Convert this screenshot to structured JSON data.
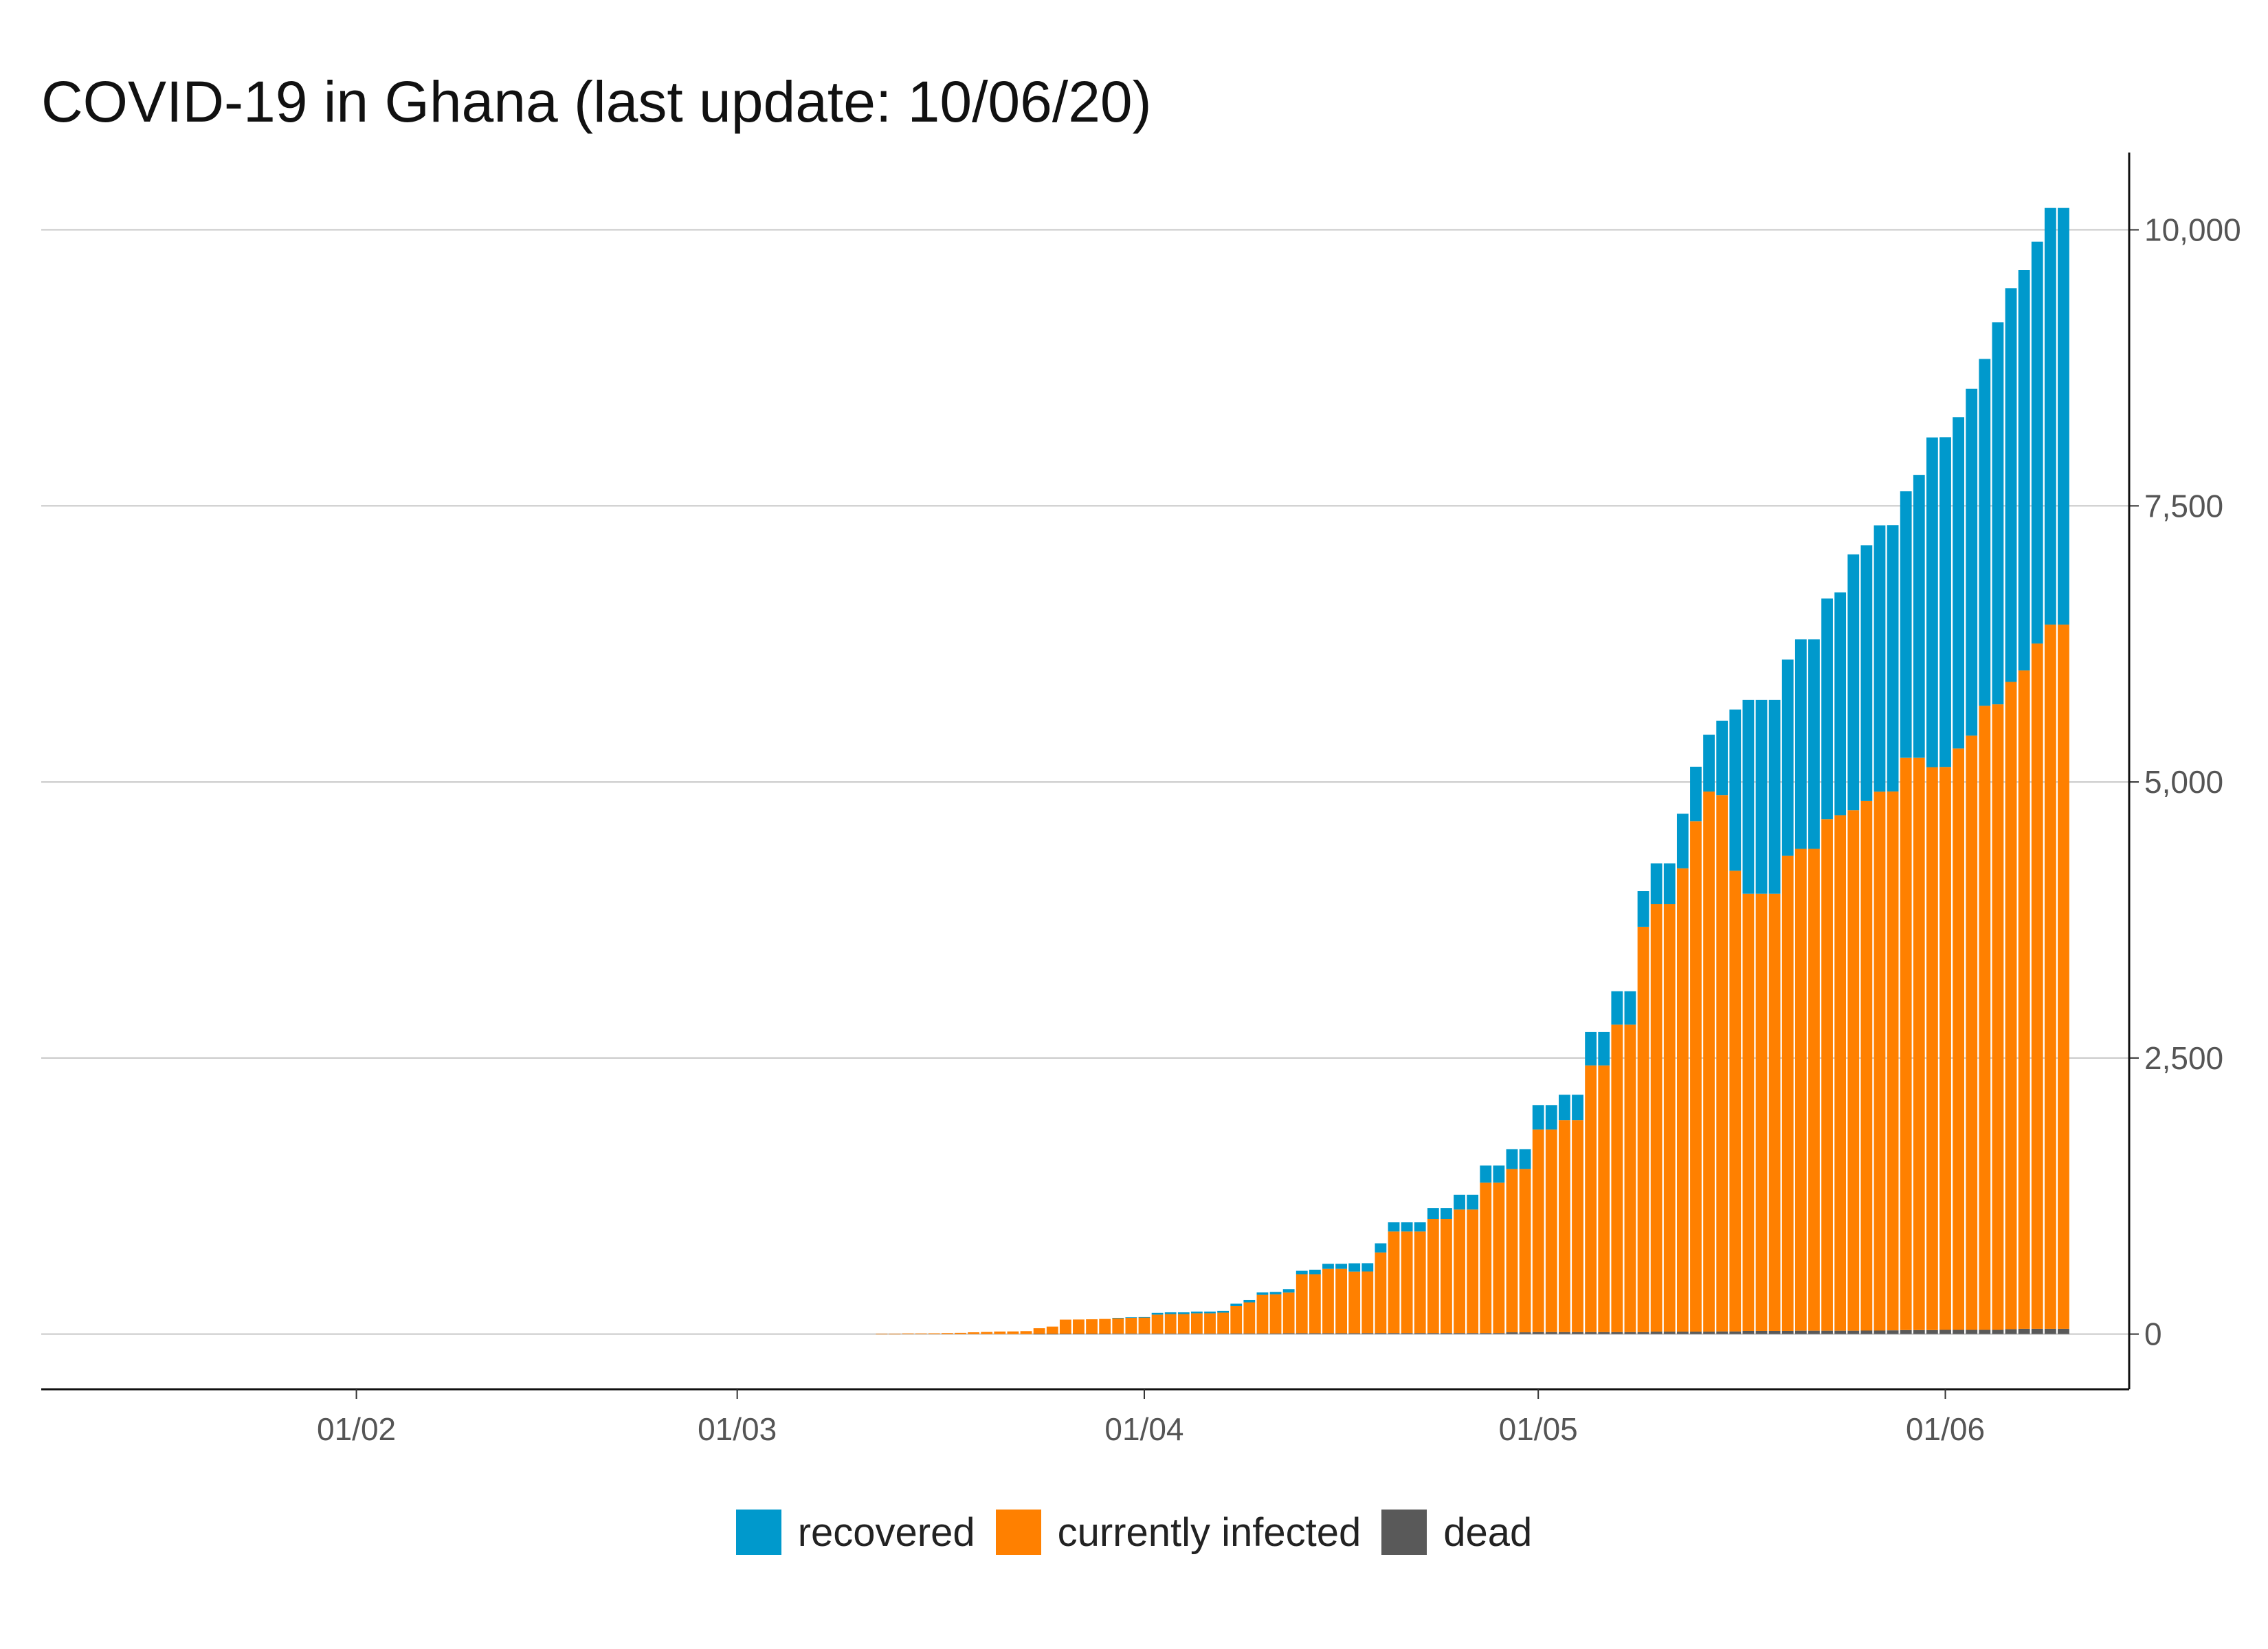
{
  "chart_data": {
    "type": "bar",
    "stacked": true,
    "title": "COVID-19 in Ghana (last update: 10/06/20)",
    "xlabel": "",
    "ylabel": "",
    "x_axis": {
      "start_date": "2020-01-13",
      "end_date": "2020-06-10",
      "tick_labels": [
        "01/02",
        "01/03",
        "01/04",
        "01/05",
        "01/06"
      ],
      "tick_dates": [
        "2020-02-01",
        "2020-03-01",
        "2020-04-01",
        "2020-05-01",
        "2020-06-01"
      ]
    },
    "y_axis": {
      "position": "right",
      "ylim": [
        -500,
        10700
      ],
      "ticks": [
        0,
        2500,
        5000,
        7500,
        10000
      ],
      "tick_labels": [
        "0",
        "2,500",
        "5,000",
        "7,500",
        "10,000"
      ]
    },
    "grid": "horizontal",
    "legend_position": "bottom",
    "series": [
      {
        "name": "dead",
        "color": "#595959",
        "values": [
          [
            "2020-03-12",
            0
          ],
          [
            "2020-03-13",
            0
          ],
          [
            "2020-03-14",
            0
          ],
          [
            "2020-03-15",
            0
          ],
          [
            "2020-03-16",
            0
          ],
          [
            "2020-03-17",
            0
          ],
          [
            "2020-03-18",
            0
          ],
          [
            "2020-03-19",
            0
          ],
          [
            "2020-03-20",
            0
          ],
          [
            "2020-03-21",
            0
          ],
          [
            "2020-03-22",
            0
          ],
          [
            "2020-03-23",
            0
          ],
          [
            "2020-03-24",
            2
          ],
          [
            "2020-03-25",
            2
          ],
          [
            "2020-03-26",
            3
          ],
          [
            "2020-03-27",
            3
          ],
          [
            "2020-03-28",
            3
          ],
          [
            "2020-03-29",
            3
          ],
          [
            "2020-03-30",
            5
          ],
          [
            "2020-03-31",
            5
          ],
          [
            "2020-04-01",
            5
          ],
          [
            "2020-04-02",
            5
          ],
          [
            "2020-04-03",
            5
          ],
          [
            "2020-04-04",
            5
          ],
          [
            "2020-04-05",
            5
          ],
          [
            "2020-04-06",
            5
          ],
          [
            "2020-04-07",
            5
          ],
          [
            "2020-04-08",
            6
          ],
          [
            "2020-04-09",
            6
          ],
          [
            "2020-04-10",
            6
          ],
          [
            "2020-04-11",
            6
          ],
          [
            "2020-04-12",
            8
          ],
          [
            "2020-04-13",
            8
          ],
          [
            "2020-04-14",
            8
          ],
          [
            "2020-04-15",
            8
          ],
          [
            "2020-04-16",
            8
          ],
          [
            "2020-04-17",
            8
          ],
          [
            "2020-04-18",
            9
          ],
          [
            "2020-04-19",
            9
          ],
          [
            "2020-04-20",
            9
          ],
          [
            "2020-04-21",
            9
          ],
          [
            "2020-04-22",
            9
          ],
          [
            "2020-04-23",
            9
          ],
          [
            "2020-04-24",
            9
          ],
          [
            "2020-04-25",
            9
          ],
          [
            "2020-04-26",
            9
          ],
          [
            "2020-04-27",
            9
          ],
          [
            "2020-04-28",
            9
          ],
          [
            "2020-04-29",
            16
          ],
          [
            "2020-04-30",
            16
          ],
          [
            "2020-05-01",
            18
          ],
          [
            "2020-05-02",
            18
          ],
          [
            "2020-05-03",
            18
          ],
          [
            "2020-05-04",
            18
          ],
          [
            "2020-05-05",
            18
          ],
          [
            "2020-05-06",
            18
          ],
          [
            "2020-05-07",
            18
          ],
          [
            "2020-05-08",
            18
          ],
          [
            "2020-05-09",
            18
          ],
          [
            "2020-05-10",
            22
          ],
          [
            "2020-05-11",
            22
          ],
          [
            "2020-05-12",
            22
          ],
          [
            "2020-05-13",
            22
          ],
          [
            "2020-05-14",
            22
          ],
          [
            "2020-05-15",
            24
          ],
          [
            "2020-05-16",
            24
          ],
          [
            "2020-05-17",
            29
          ],
          [
            "2020-05-18",
            29
          ],
          [
            "2020-05-19",
            29
          ],
          [
            "2020-05-20",
            29
          ],
          [
            "2020-05-21",
            31
          ],
          [
            "2020-05-22",
            31
          ],
          [
            "2020-05-23",
            31
          ],
          [
            "2020-05-24",
            31
          ],
          [
            "2020-05-25",
            31
          ],
          [
            "2020-05-26",
            32
          ],
          [
            "2020-05-27",
            32
          ],
          [
            "2020-05-28",
            34
          ],
          [
            "2020-05-29",
            36
          ],
          [
            "2020-05-30",
            36
          ],
          [
            "2020-05-31",
            36
          ],
          [
            "2020-06-01",
            38
          ],
          [
            "2020-06-02",
            38
          ],
          [
            "2020-06-03",
            38
          ],
          [
            "2020-06-04",
            38
          ],
          [
            "2020-06-05",
            38
          ],
          [
            "2020-06-06",
            44
          ],
          [
            "2020-06-07",
            48
          ],
          [
            "2020-06-08",
            48
          ],
          [
            "2020-06-09",
            48
          ],
          [
            "2020-06-10",
            48
          ]
        ]
      },
      {
        "name": "currently infected",
        "color": "#ff8000",
        "values": [
          [
            "2020-03-12",
            2
          ],
          [
            "2020-03-13",
            2
          ],
          [
            "2020-03-14",
            6
          ],
          [
            "2020-03-15",
            6
          ],
          [
            "2020-03-16",
            7
          ],
          [
            "2020-03-17",
            9
          ],
          [
            "2020-03-18",
            11
          ],
          [
            "2020-03-19",
            16
          ],
          [
            "2020-03-20",
            19
          ],
          [
            "2020-03-21",
            23
          ],
          [
            "2020-03-22",
            24
          ],
          [
            "2020-03-23",
            27
          ],
          [
            "2020-03-24",
            51
          ],
          [
            "2020-03-25",
            66
          ],
          [
            "2020-03-26",
            128
          ],
          [
            "2020-03-27",
            129
          ],
          [
            "2020-03-28",
            131
          ],
          [
            "2020-03-29",
            134
          ],
          [
            "2020-03-30",
            140
          ],
          [
            "2020-03-31",
            145
          ],
          [
            "2020-04-01",
            146
          ],
          [
            "2020-04-02",
            171
          ],
          [
            "2020-04-03",
            176
          ],
          [
            "2020-04-04",
            176
          ],
          [
            "2020-04-05",
            183
          ],
          [
            "2020-04-06",
            183
          ],
          [
            "2020-04-07",
            189
          ],
          [
            "2020-04-08",
            247
          ],
          [
            "2020-04-09",
            281
          ],
          [
            "2020-04-10",
            349
          ],
          [
            "2020-04-11",
            354
          ],
          [
            "2020-04-12",
            368
          ],
          [
            "2020-04-13",
            534
          ],
          [
            "2020-04-14",
            534
          ],
          [
            "2020-04-15",
            583
          ],
          [
            "2020-04-16",
            583
          ],
          [
            "2020-04-17",
            558
          ],
          [
            "2020-04-18",
            558
          ],
          [
            "2020-04-19",
            730
          ],
          [
            "2020-04-20",
            920
          ],
          [
            "2020-04-21",
            920
          ],
          [
            "2020-04-22",
            920
          ],
          [
            "2020-04-23",
            1034
          ],
          [
            "2020-04-24",
            1034
          ],
          [
            "2020-04-25",
            1119
          ],
          [
            "2020-04-26",
            1119
          ],
          [
            "2020-04-27",
            1362
          ],
          [
            "2020-04-28",
            1362
          ],
          [
            "2020-04-29",
            1479
          ],
          [
            "2020-04-30",
            1479
          ],
          [
            "2020-05-01",
            1835
          ],
          [
            "2020-05-02",
            1835
          ],
          [
            "2020-05-03",
            1920
          ],
          [
            "2020-05-04",
            1920
          ],
          [
            "2020-05-05",
            2415
          ],
          [
            "2020-05-06",
            2415
          ],
          [
            "2020-05-07",
            2784
          ],
          [
            "2020-05-08",
            2784
          ],
          [
            "2020-05-09",
            3670
          ],
          [
            "2020-05-10",
            3871
          ],
          [
            "2020-05-11",
            3871
          ],
          [
            "2020-05-12",
            4196
          ],
          [
            "2020-05-13",
            4622
          ],
          [
            "2020-05-14",
            4891
          ],
          [
            "2020-05-15",
            4857
          ],
          [
            "2020-05-16",
            4172
          ],
          [
            "2020-05-17",
            3959
          ],
          [
            "2020-05-18",
            3959
          ],
          [
            "2020-05-19",
            3959
          ],
          [
            "2020-05-20",
            4302
          ],
          [
            "2020-05-21",
            4363
          ],
          [
            "2020-05-22",
            4363
          ],
          [
            "2020-05-23",
            4632
          ],
          [
            "2020-05-24",
            4668
          ],
          [
            "2020-05-25",
            4713
          ],
          [
            "2020-05-26",
            4795
          ],
          [
            "2020-05-27",
            4880
          ],
          [
            "2020-05-28",
            4880
          ],
          [
            "2020-05-29",
            5184
          ],
          [
            "2020-05-30",
            5184
          ],
          [
            "2020-05-31",
            5098
          ],
          [
            "2020-06-01",
            5098
          ],
          [
            "2020-06-02",
            5265
          ],
          [
            "2020-06-03",
            5382
          ],
          [
            "2020-06-04",
            5652
          ],
          [
            "2020-06-05",
            5665
          ],
          [
            "2020-06-06",
            5862
          ],
          [
            "2020-06-07",
            5963
          ],
          [
            "2020-06-08",
            6206
          ],
          [
            "2020-06-09",
            6377
          ],
          [
            "2020-06-10",
            6377
          ]
        ]
      },
      {
        "name": "recovered",
        "color": "#0099cc",
        "values": [
          [
            "2020-03-12",
            0
          ],
          [
            "2020-03-13",
            0
          ],
          [
            "2020-03-14",
            0
          ],
          [
            "2020-03-15",
            0
          ],
          [
            "2020-03-16",
            0
          ],
          [
            "2020-03-17",
            0
          ],
          [
            "2020-03-18",
            0
          ],
          [
            "2020-03-19",
            0
          ],
          [
            "2020-03-20",
            0
          ],
          [
            "2020-03-21",
            0
          ],
          [
            "2020-03-22",
            0
          ],
          [
            "2020-03-23",
            0
          ],
          [
            "2020-03-24",
            0
          ],
          [
            "2020-03-25",
            0
          ],
          [
            "2020-03-26",
            0
          ],
          [
            "2020-03-27",
            0
          ],
          [
            "2020-03-28",
            0
          ],
          [
            "2020-03-29",
            0
          ],
          [
            "2020-03-30",
            2
          ],
          [
            "2020-03-31",
            2
          ],
          [
            "2020-04-01",
            3
          ],
          [
            "2020-04-02",
            16
          ],
          [
            "2020-04-03",
            16
          ],
          [
            "2020-04-04",
            16
          ],
          [
            "2020-04-05",
            16
          ],
          [
            "2020-04-06",
            16
          ],
          [
            "2020-04-07",
            16
          ],
          [
            "2020-04-08",
            22
          ],
          [
            "2020-04-09",
            22
          ],
          [
            "2020-04-10",
            22
          ],
          [
            "2020-04-11",
            22
          ],
          [
            "2020-04-12",
            31
          ],
          [
            "2020-04-13",
            31
          ],
          [
            "2020-04-14",
            41
          ],
          [
            "2020-04-15",
            45
          ],
          [
            "2020-04-16",
            45
          ],
          [
            "2020-04-17",
            75
          ],
          [
            "2020-04-18",
            75
          ],
          [
            "2020-04-19",
            83
          ],
          [
            "2020-04-20",
            83
          ],
          [
            "2020-04-21",
            83
          ],
          [
            "2020-04-22",
            83
          ],
          [
            "2020-04-23",
            99
          ],
          [
            "2020-04-24",
            99
          ],
          [
            "2020-04-25",
            134
          ],
          [
            "2020-04-26",
            134
          ],
          [
            "2020-04-27",
            155
          ],
          [
            "2020-04-28",
            155
          ],
          [
            "2020-04-29",
            180
          ],
          [
            "2020-04-30",
            180
          ],
          [
            "2020-05-01",
            221
          ],
          [
            "2020-05-02",
            221
          ],
          [
            "2020-05-03",
            229
          ],
          [
            "2020-05-04",
            229
          ],
          [
            "2020-05-05",
            303
          ],
          [
            "2020-05-06",
            303
          ],
          [
            "2020-05-07",
            303
          ],
          [
            "2020-05-08",
            303
          ],
          [
            "2020-05-09",
            323
          ],
          [
            "2020-05-10",
            370
          ],
          [
            "2020-05-11",
            370
          ],
          [
            "2020-05-12",
            494
          ],
          [
            "2020-05-13",
            494
          ],
          [
            "2020-05-14",
            514
          ],
          [
            "2020-05-15",
            674
          ],
          [
            "2020-05-16",
            1460
          ],
          [
            "2020-05-17",
            1754
          ],
          [
            "2020-05-18",
            1754
          ],
          [
            "2020-05-19",
            1754
          ],
          [
            "2020-05-20",
            1778
          ],
          [
            "2020-05-21",
            1898
          ],
          [
            "2020-05-22",
            1898
          ],
          [
            "2020-05-23",
            1998
          ],
          [
            "2020-05-24",
            2017
          ],
          [
            "2020-05-25",
            2317
          ],
          [
            "2020-05-26",
            2317
          ],
          [
            "2020-05-27",
            2412
          ],
          [
            "2020-05-28",
            2412
          ],
          [
            "2020-05-29",
            2412
          ],
          [
            "2020-05-30",
            2561
          ],
          [
            "2020-05-31",
            2986
          ],
          [
            "2020-06-01",
            2986
          ],
          [
            "2020-06-02",
            3000
          ],
          [
            "2020-06-03",
            3141
          ],
          [
            "2020-06-04",
            3141
          ],
          [
            "2020-06-05",
            3459
          ],
          [
            "2020-06-06",
            3566
          ],
          [
            "2020-06-07",
            3625
          ],
          [
            "2020-06-08",
            3639
          ],
          [
            "2020-06-09",
            3773
          ],
          [
            "2020-06-10",
            3773
          ]
        ]
      }
    ]
  },
  "legend": {
    "items": [
      {
        "label": "recovered",
        "color": "#0099cc"
      },
      {
        "label": "currently infected",
        "color": "#ff8000"
      },
      {
        "label": "dead",
        "color": "#595959"
      }
    ]
  }
}
